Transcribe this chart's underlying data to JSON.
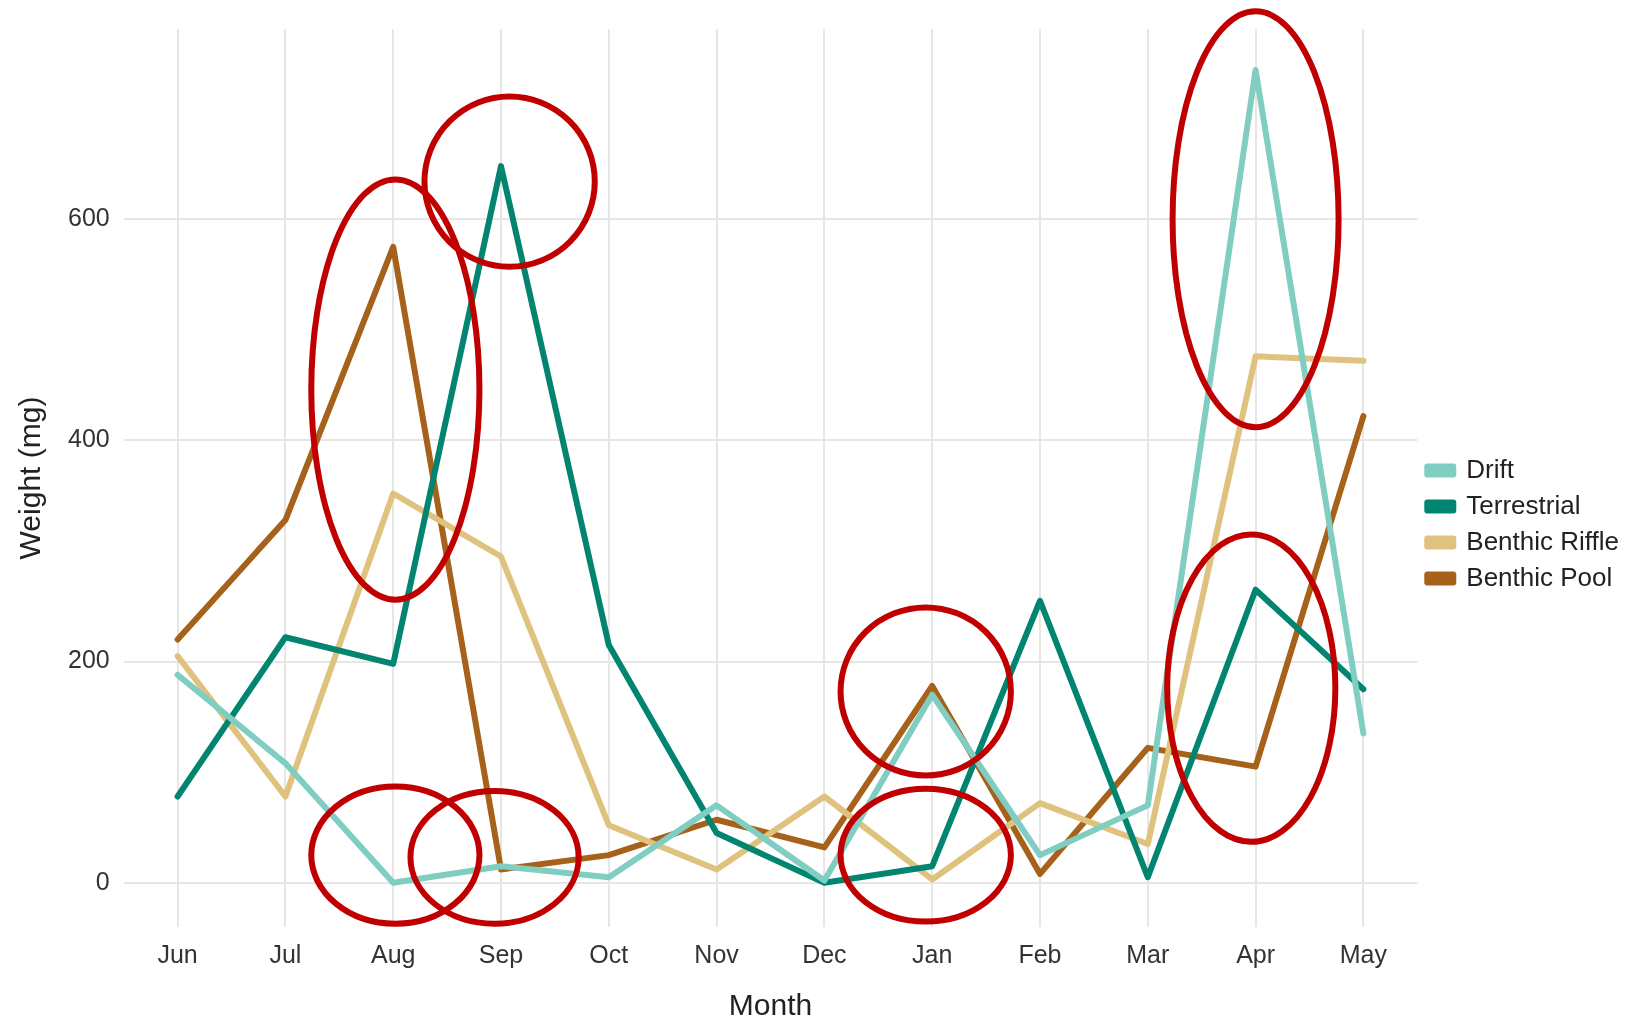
{
  "chart_data": {
    "type": "line",
    "xlabel": "Month",
    "ylabel": "Weight (mg)",
    "categories": [
      "Jun",
      "Jul",
      "Aug",
      "Sep",
      "Oct",
      "Nov",
      "Dec",
      "Jan",
      "Feb",
      "Mar",
      "Apr",
      "May"
    ],
    "series": [
      {
        "name": "Drift",
        "color": "#80cdc1",
        "values": [
          188,
          108,
          0,
          15,
          5,
          70,
          2,
          170,
          25,
          70,
          735,
          135
        ]
      },
      {
        "name": "Terrestrial",
        "color": "#018571",
        "values": [
          78,
          222,
          198,
          648,
          215,
          45,
          0,
          15,
          255,
          5,
          265,
          175
        ]
      },
      {
        "name": "Benthic Riffle",
        "color": "#dfc27d",
        "values": [
          205,
          78,
          352,
          295,
          52,
          12,
          78,
          3,
          72,
          35,
          476,
          472
        ]
      },
      {
        "name": "Benthic Pool",
        "color": "#a6611a",
        "values": [
          220,
          328,
          575,
          12,
          25,
          57,
          32,
          178,
          8,
          122,
          105,
          422
        ]
      }
    ],
    "ylim": [
      -40,
      772
    ],
    "yticks": [
      0,
      200,
      400,
      600
    ],
    "grid": true,
    "legend": "right",
    "marker": "none",
    "line_style": "solid"
  }
}
